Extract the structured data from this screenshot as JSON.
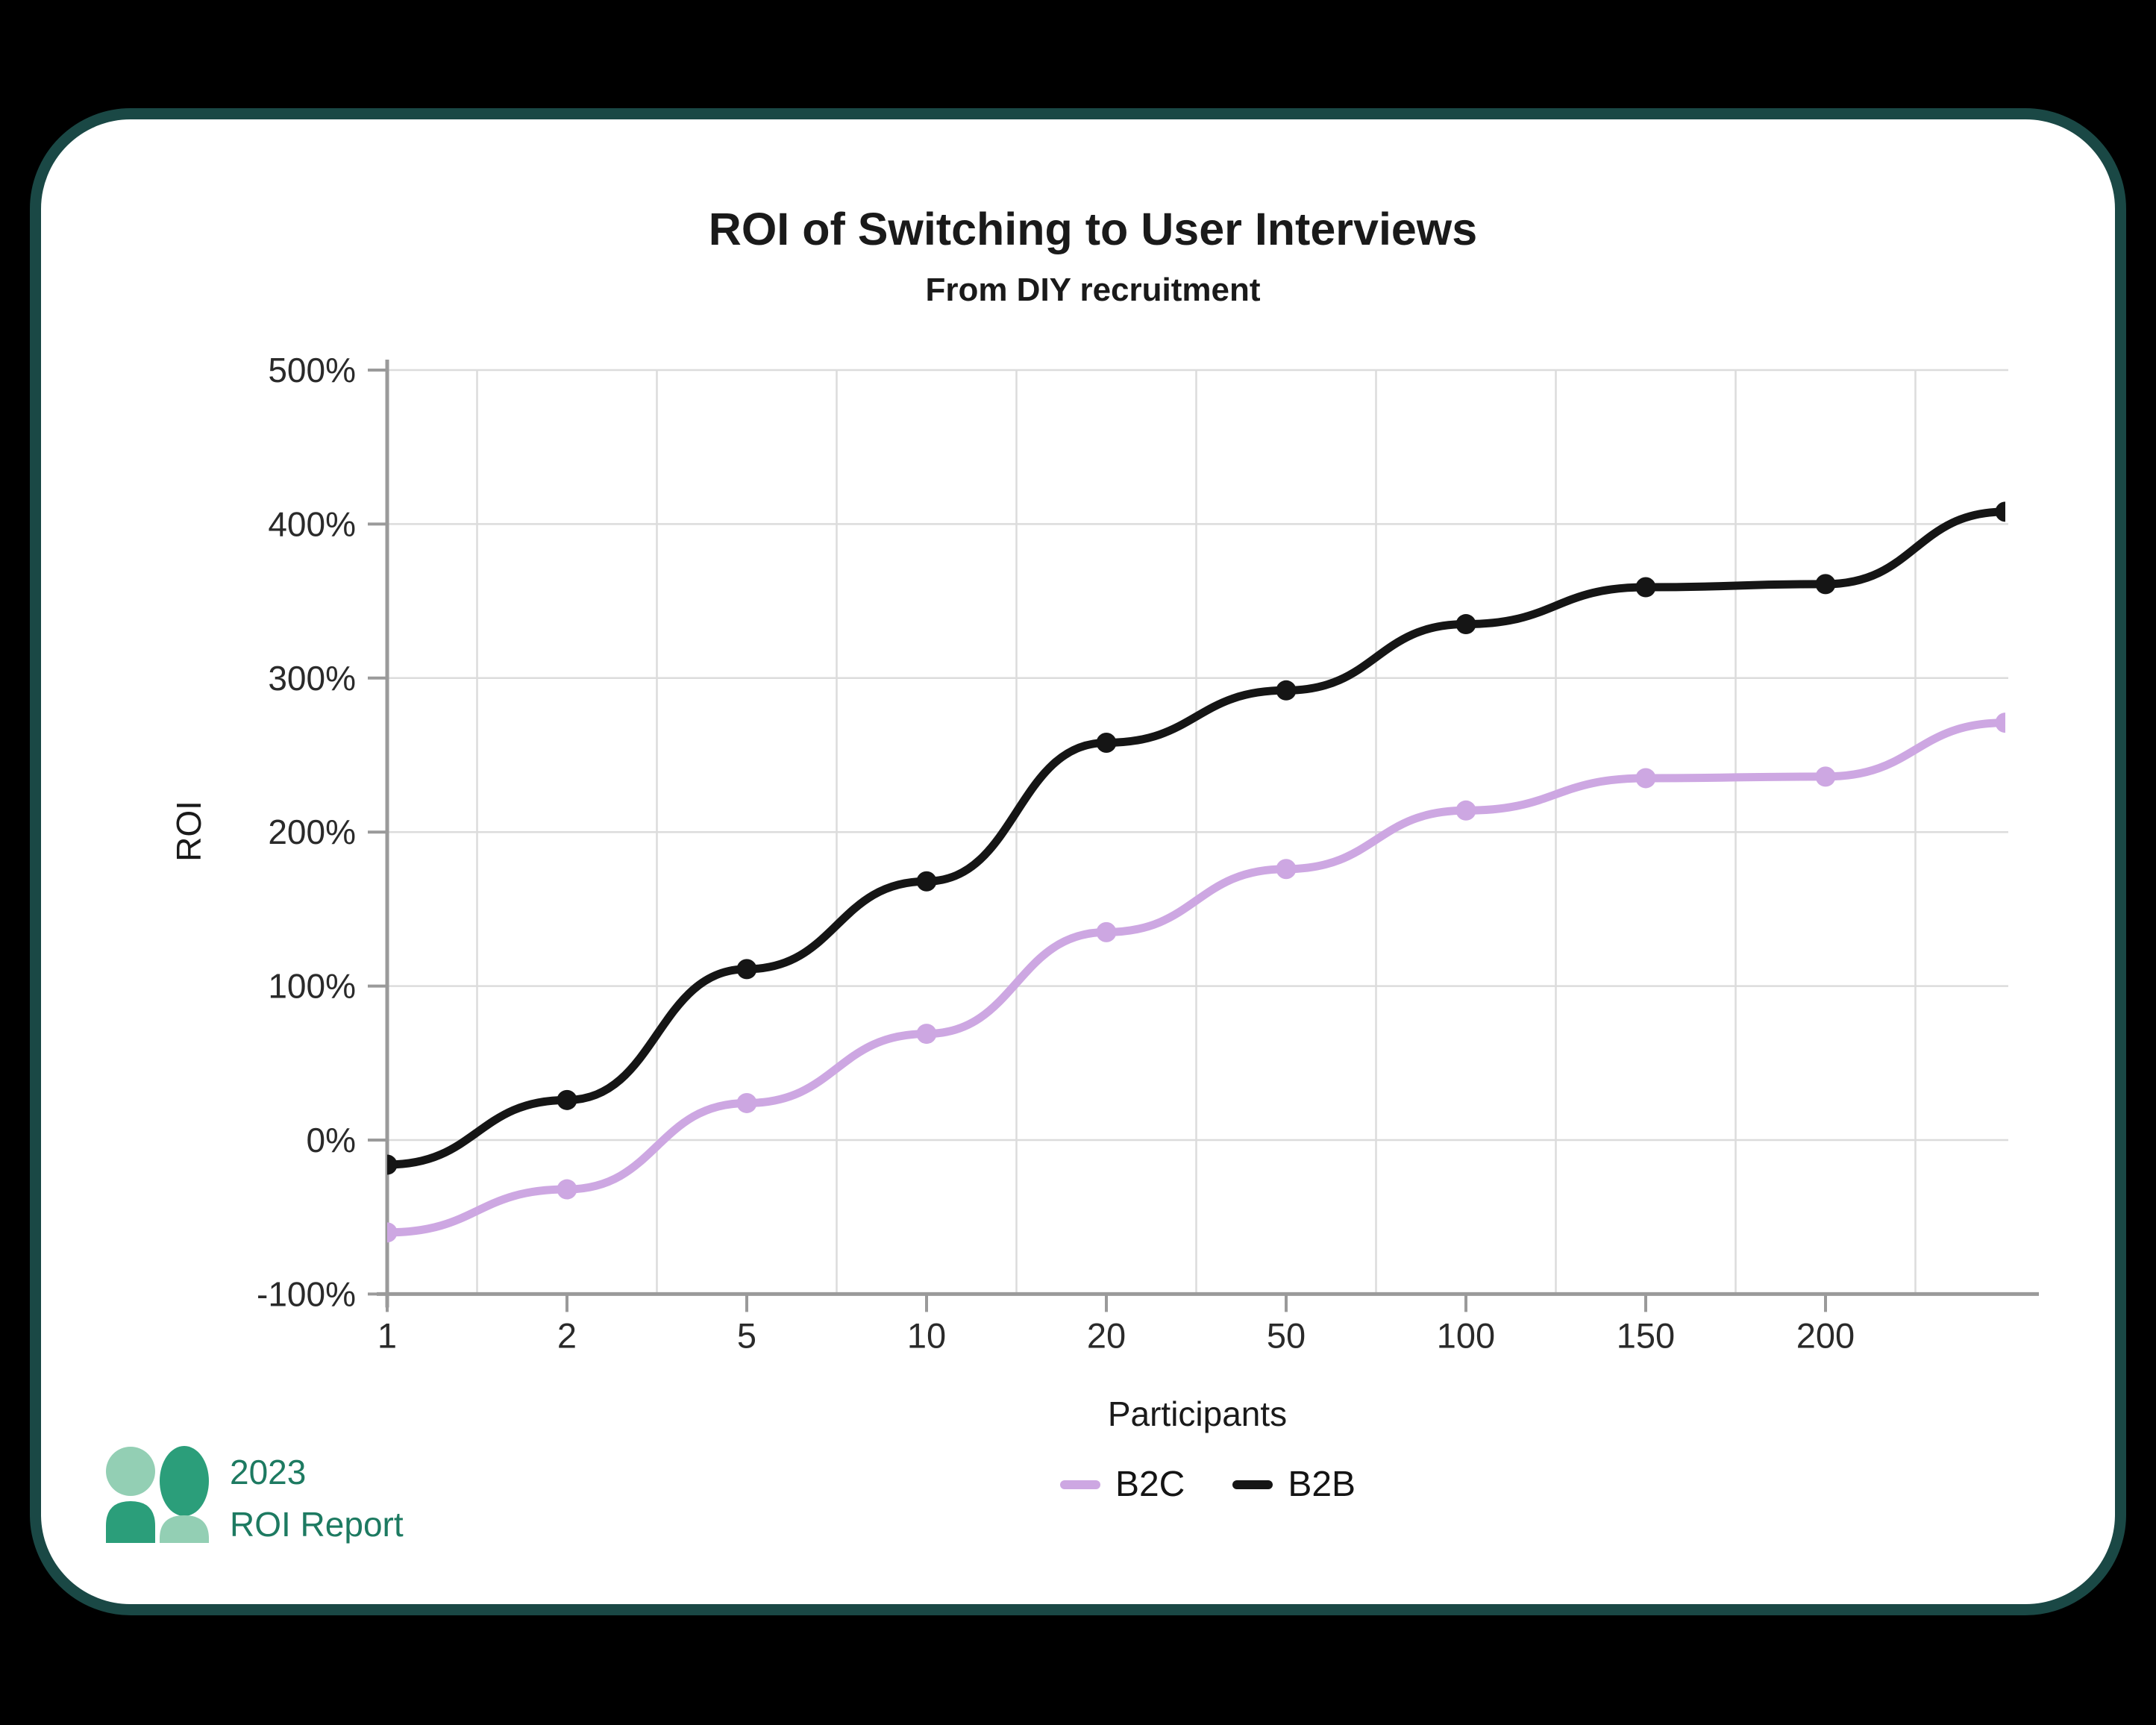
{
  "page": {
    "background": "#000000"
  },
  "card": {
    "background": "#ffffff",
    "border_color": "#1a4845"
  },
  "chart_data": {
    "type": "line",
    "title": "ROI of Switching to User Interviews",
    "subtitle": "From DIY recruitment",
    "xlabel": "Participants",
    "ylabel": "ROI",
    "x_tick_labels": [
      "1",
      "2",
      "5",
      "10",
      "20",
      "50",
      "100",
      "150",
      "200"
    ],
    "y_tick_labels": [
      "500%",
      "400%",
      "300%",
      "200%",
      "100%",
      "0%",
      "-100%"
    ],
    "y_tick_values": [
      500,
      400,
      300,
      200,
      100,
      0,
      -100
    ],
    "ylim": [
      -100,
      500
    ],
    "axis_note": "x ticks equally spaced; both curves extend one unlabeled step past 200 participants",
    "grid": {
      "horizontal": true,
      "vertical_midpoints": true,
      "color": "#dcdcdc",
      "axis_color": "#9a9a9a",
      "tick_text_color": "#2a2a2a"
    },
    "legend_position": "bottom",
    "series": [
      {
        "name": "B2C",
        "color": "#cda7e2",
        "values": [
          -60,
          -32,
          24,
          69,
          135,
          176,
          214,
          235,
          236,
          271
        ]
      },
      {
        "name": "B2B",
        "color": "#151515",
        "values": [
          -16,
          26,
          111,
          168,
          258,
          292,
          335,
          359,
          361,
          408
        ]
      }
    ]
  },
  "footer": {
    "year": "2023",
    "label": "ROI Report",
    "text_color": "#1d7a61",
    "logo_colors": {
      "dark": "#2b9e7a",
      "light": "#93cfb4"
    }
  }
}
